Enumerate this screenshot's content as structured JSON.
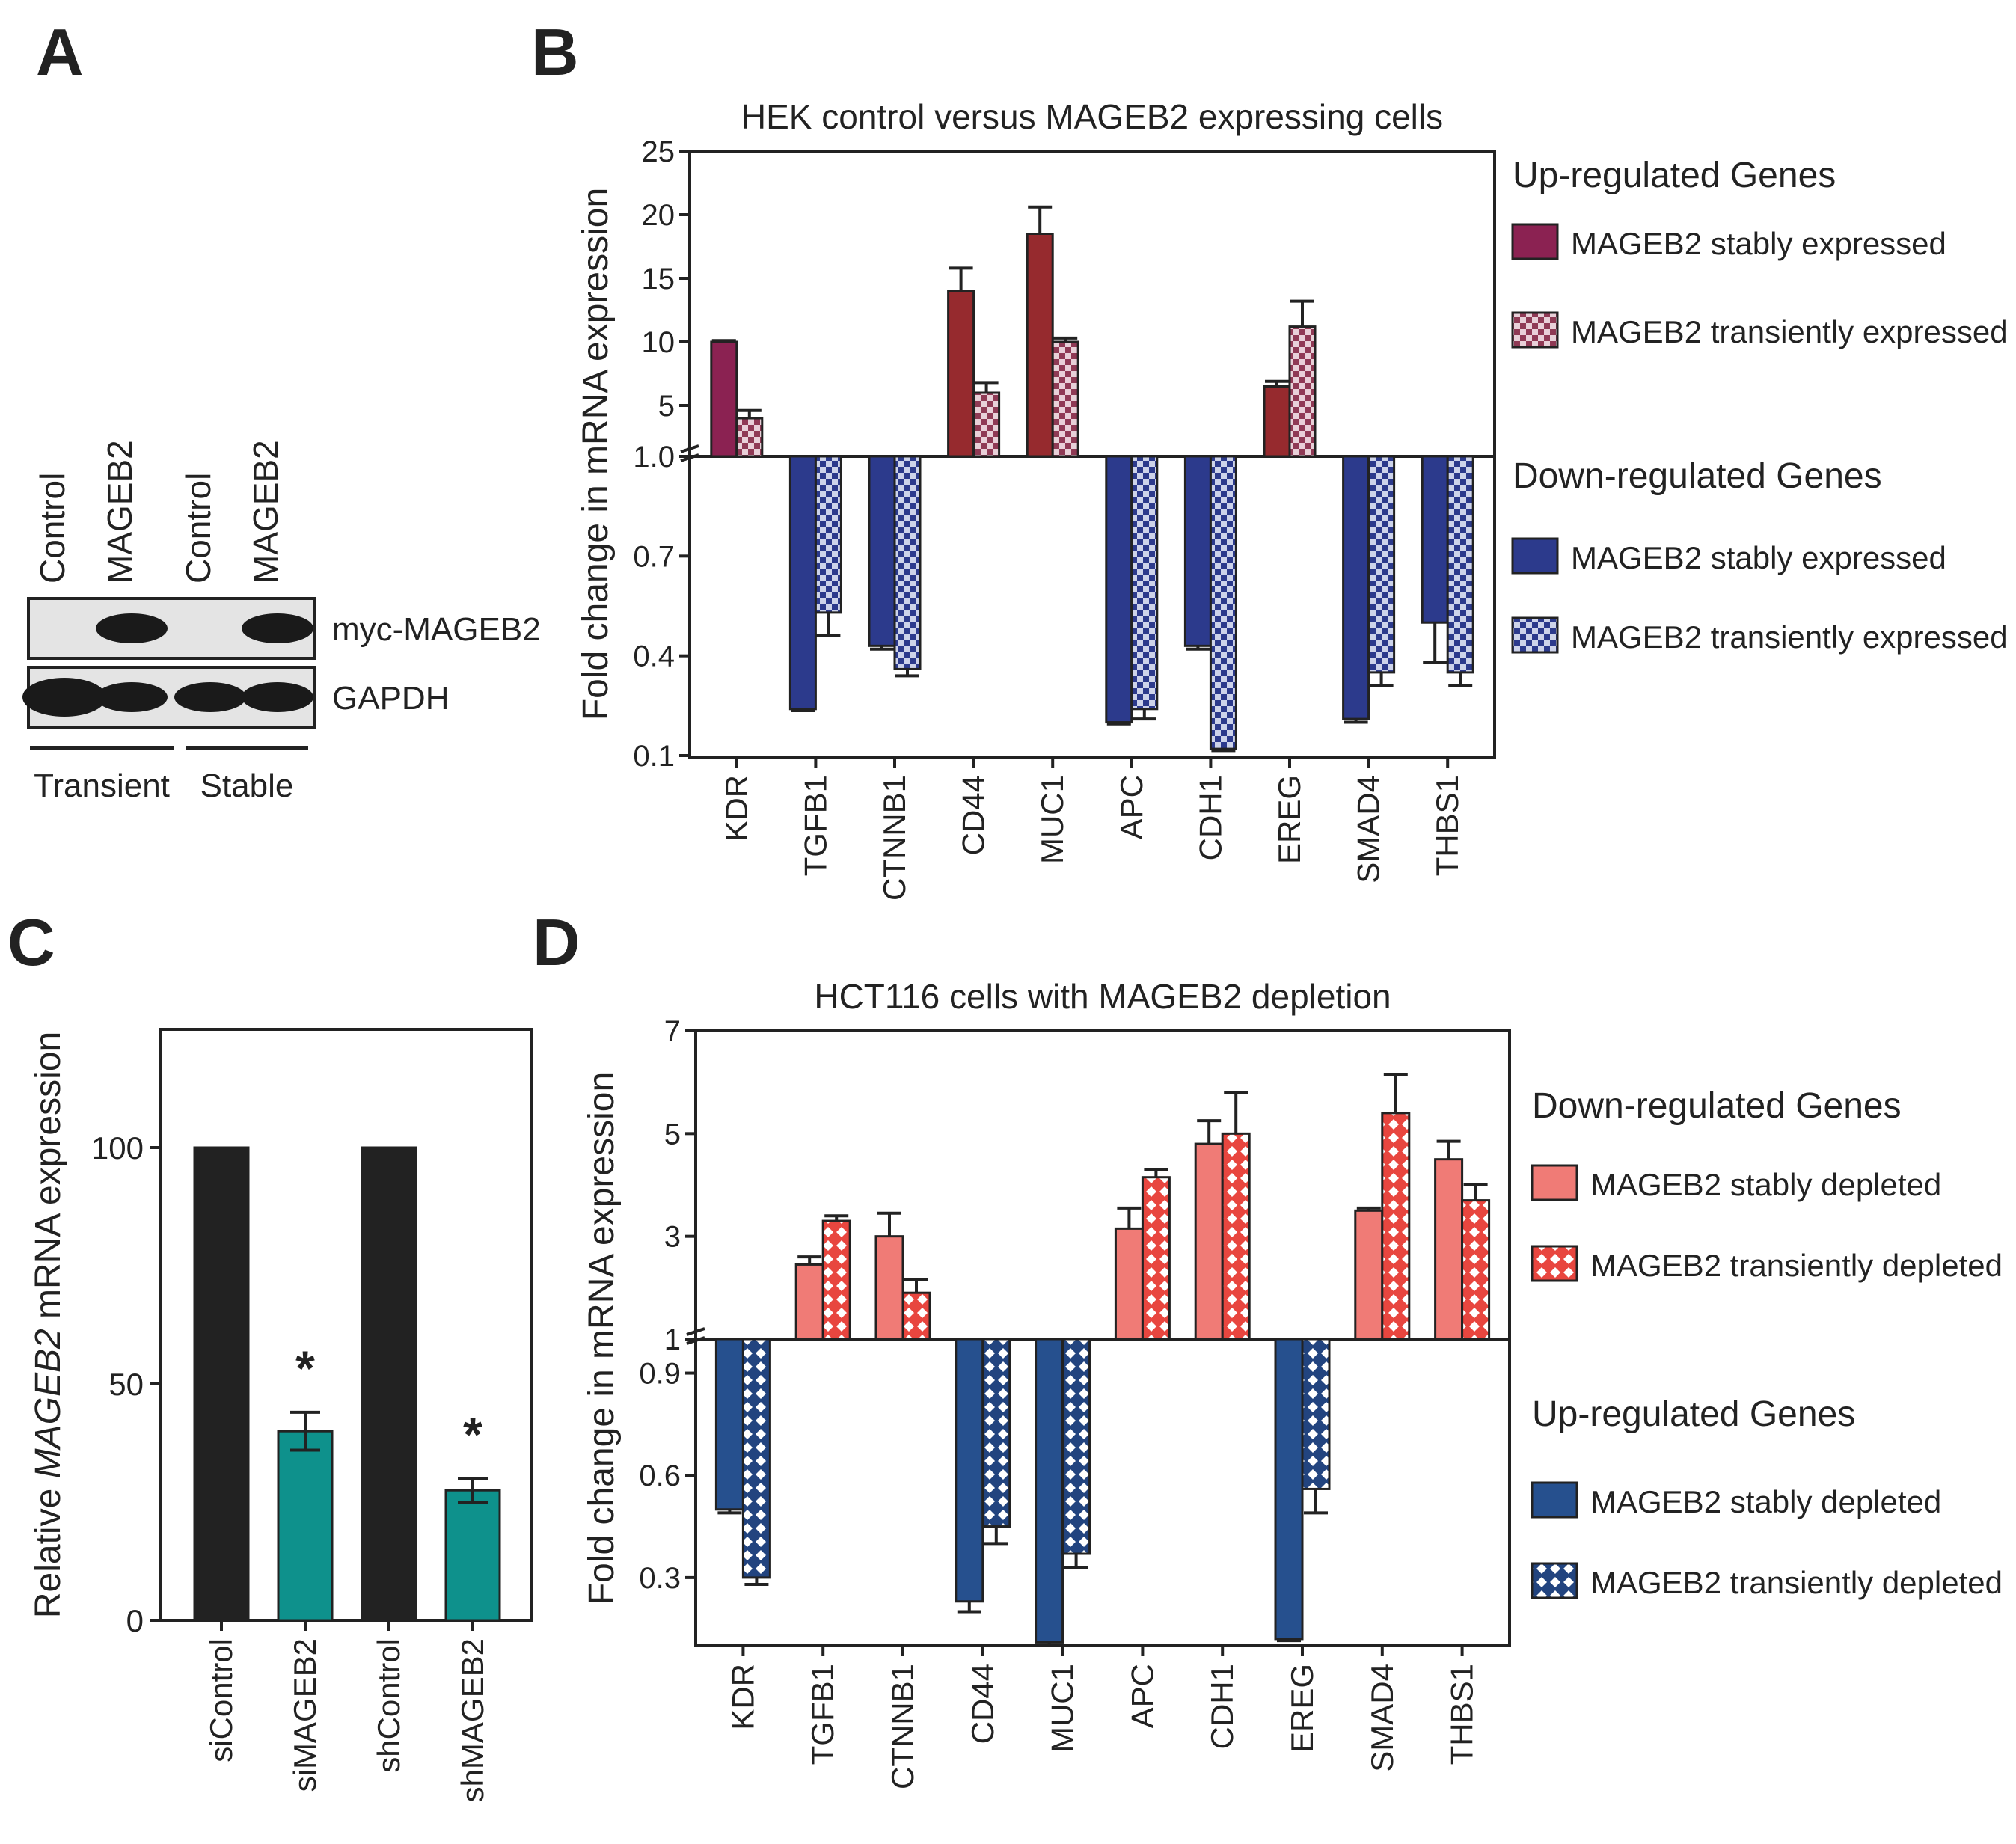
{
  "colors": {
    "b_up_stable": "#8b2252",
    "b_up_stable_dark": "#962a2e",
    "b_down": "#2c3a8c",
    "c_control": "#222222",
    "c_knockdown": "#0e918c",
    "d_down": "#f07b76",
    "d_up": "#26508e"
  },
  "panels": {
    "a": "A",
    "b": "B",
    "c": "C",
    "d": "D"
  },
  "panel_a": {
    "lanes": [
      "Control",
      "MAGEB2",
      "Control",
      "MAGEB2"
    ],
    "blots": [
      "myc-MAGEB2",
      "GAPDH"
    ],
    "groups": [
      "Transient",
      "Stable"
    ],
    "band_presence": {
      "myc-MAGEB2": [
        0,
        1,
        0,
        1
      ],
      "GAPDH": [
        1,
        1,
        1,
        1
      ]
    }
  },
  "chart_data": [
    {
      "panel": "B",
      "type": "bar",
      "title": "HEK control versus MAGEB2 expressing cells",
      "ylabel": "Fold change in mRNA expression",
      "axis_break": 1.0,
      "upper_ylim": [
        1,
        25
      ],
      "upper_ticks": [
        "25",
        "20",
        "15",
        "10",
        "5",
        "1.0"
      ],
      "lower_ylim": [
        0.1,
        1.0
      ],
      "lower_ticks": [
        "0.7",
        "0.4",
        "0.1"
      ],
      "categories": [
        "KDR",
        "TGFB1",
        "CTNNB1",
        "CD44",
        "MUC1",
        "APC",
        "CDH1",
        "EREG",
        "SMAD4",
        "THBS1"
      ],
      "series": [
        {
          "name": "MAGEB2 stably expressed",
          "values": [
            10,
            0.24,
            0.43,
            14,
            18.5,
            0.2,
            0.43,
            6.5,
            0.21,
            0.5
          ],
          "errors": [
            0.1,
            0.005,
            0.01,
            1.8,
            2.1,
            0.005,
            0.01,
            0.4,
            0.01,
            0.12
          ]
        },
        {
          "name": "MAGEB2 transiently expressed",
          "values": [
            4,
            0.53,
            0.36,
            6,
            10,
            0.24,
            0.12,
            11.2,
            0.35,
            0.35
          ],
          "errors": [
            0.6,
            0.07,
            0.02,
            0.8,
            0.3,
            0.03,
            0.005,
            2.0,
            0.04,
            0.04
          ]
        }
      ],
      "legend": {
        "up_heading": "Up-regulated Genes",
        "down_heading": "Down-regulated Genes",
        "up_items": [
          "MAGEB2 stably expressed",
          "MAGEB2 transiently expressed"
        ],
        "down_items": [
          "MAGEB2 stably expressed",
          "MAGEB2 transiently expressed"
        ]
      }
    },
    {
      "panel": "C",
      "type": "bar",
      "ylabel_pre": "Relative ",
      "ylabel_italic": "MAGEB2",
      "ylabel_post": " mRNA expression",
      "ylim": [
        0,
        125
      ],
      "yticks": [
        "100",
        "50",
        "0"
      ],
      "categories": [
        "siControl",
        "siMAGEB2",
        "shControl",
        "shMAGEB2"
      ],
      "values": [
        100,
        40,
        100,
        27.5
      ],
      "errors": [
        0,
        4,
        0,
        2.5
      ],
      "significance": [
        "",
        "*",
        "",
        "*"
      ]
    },
    {
      "panel": "D",
      "type": "bar",
      "title": "HCT116 cells with MAGEB2 depletion",
      "ylabel": "Fold change in mRNA expression",
      "axis_break": 1,
      "upper_ylim": [
        1,
        7
      ],
      "upper_ticks": [
        "7",
        "5",
        "3",
        "1"
      ],
      "lower_ylim": [
        0.1,
        1.0
      ],
      "lower_ticks": [
        "0.9",
        "0.6",
        "0.3"
      ],
      "categories": [
        "KDR",
        "TGFB1",
        "CTNNB1",
        "CD44",
        "MUC1",
        "APC",
        "CDH1",
        "EREG",
        "SMAD4",
        "THBS1"
      ],
      "series": [
        {
          "name": "MAGEB2 stably depleted",
          "values": [
            0.5,
            2.45,
            3.0,
            0.23,
            0.11,
            3.15,
            4.8,
            0.12,
            3.5,
            4.5
          ],
          "errors": [
            0.01,
            0.15,
            0.45,
            0.03,
            0.01,
            0.4,
            0.45,
            0.005,
            0.05,
            0.35
          ]
        },
        {
          "name": "MAGEB2 transiently depleted",
          "values": [
            0.3,
            3.3,
            1.9,
            0.45,
            0.37,
            4.15,
            5.0,
            0.56,
            5.4,
            3.7
          ],
          "errors": [
            0.02,
            0.1,
            0.25,
            0.05,
            0.04,
            0.15,
            0.8,
            0.07,
            0.75,
            0.3
          ]
        }
      ],
      "legend": {
        "up_heading": "Down-regulated Genes",
        "down_heading": "Up-regulated Genes",
        "up_items": [
          "MAGEB2 stably depleted",
          "MAGEB2 transiently depleted"
        ],
        "down_items": [
          "MAGEB2 stably depleted",
          "MAGEB2 transiently depleted"
        ]
      }
    }
  ]
}
